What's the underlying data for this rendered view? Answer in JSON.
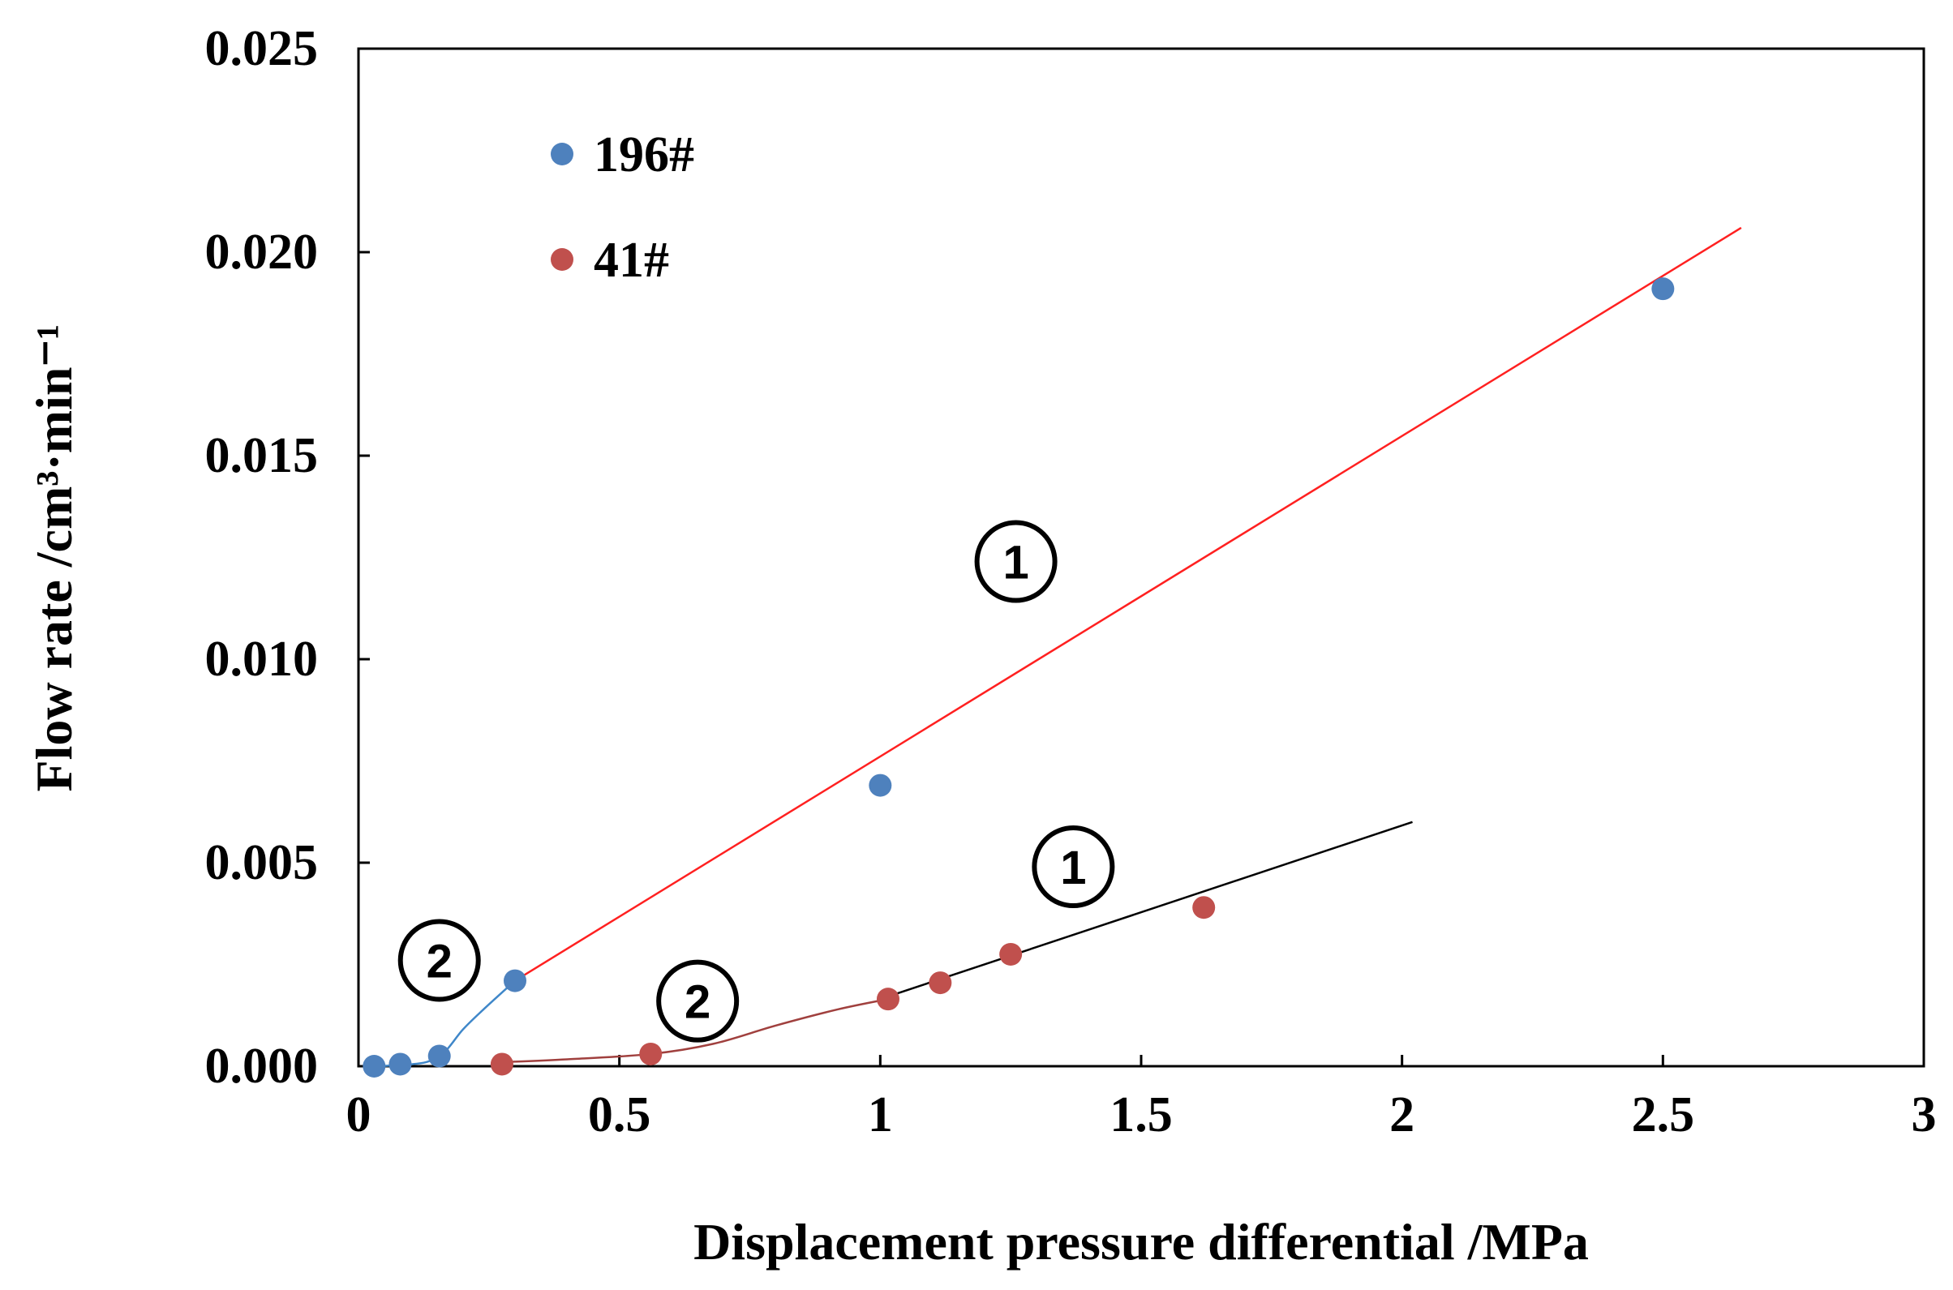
{
  "chart_data": {
    "type": "scatter",
    "title": "",
    "xlabel": "Displacement pressure differential /MPa",
    "ylabel": "Flow rate /cm³·min⁻¹",
    "xlim": [
      0,
      3
    ],
    "ylim": [
      0,
      0.025
    ],
    "x_ticks": [
      "0",
      "0.5",
      "1",
      "1.5",
      "2",
      "2.5",
      "3"
    ],
    "y_ticks": [
      "0.000",
      "0.005",
      "0.010",
      "0.015",
      "0.020",
      "0.025"
    ],
    "grid": false,
    "legend_position": "top-left",
    "colors": {
      "s196": "#4e81bd",
      "s41": "#c0504d",
      "fit_196": "#ff2020",
      "fit_41": "#000000",
      "curve_196": "#3f87c9",
      "curve_41": "#a0403e"
    },
    "series": [
      {
        "name": "196#",
        "color": "#4e81bd",
        "points": [
          [
            0.03,
            0.0
          ],
          [
            0.08,
            5e-05
          ],
          [
            0.155,
            0.00025
          ],
          [
            0.3,
            0.0021
          ],
          [
            1.0,
            0.0069
          ],
          [
            2.5,
            0.0191
          ]
        ]
      },
      {
        "name": "41#",
        "color": "#c0504d",
        "points": [
          [
            0.275,
            5e-05
          ],
          [
            0.56,
            0.0003
          ],
          [
            1.015,
            0.00165
          ],
          [
            1.115,
            0.00205
          ],
          [
            1.25,
            0.00275
          ],
          [
            1.62,
            0.0039
          ]
        ]
      }
    ],
    "fit_lines": [
      {
        "name": "196# linear region",
        "color": "#ff2020",
        "from": [
          0.3,
          0.0021
        ],
        "to": [
          2.65,
          0.0206
        ]
      },
      {
        "name": "41# linear region",
        "color": "#000000",
        "from": [
          1.0,
          0.00165
        ],
        "to": [
          2.02,
          0.006
        ]
      }
    ],
    "curves": [
      {
        "name": "196# nonlinear region",
        "color": "#3f87c9",
        "points": [
          [
            0.03,
            0.0
          ],
          [
            0.08,
            3e-05
          ],
          [
            0.13,
            0.0001
          ],
          [
            0.165,
            0.00035
          ],
          [
            0.2,
            0.0009
          ],
          [
            0.24,
            0.0014
          ],
          [
            0.3,
            0.0021
          ]
        ]
      },
      {
        "name": "41# nonlinear region",
        "color": "#a0403e",
        "points": [
          [
            0.275,
            0.0001
          ],
          [
            0.4,
            0.00017
          ],
          [
            0.56,
            0.0003
          ],
          [
            0.68,
            0.00055
          ],
          [
            0.8,
            0.001
          ],
          [
            0.92,
            0.0014
          ],
          [
            1.015,
            0.00165
          ]
        ]
      }
    ],
    "annotations": [
      {
        "label": "1",
        "x": 1.26,
        "y": 0.0124
      },
      {
        "label": "1",
        "x": 1.37,
        "y": 0.0049
      },
      {
        "label": "2",
        "x": 0.155,
        "y": 0.0026
      },
      {
        "label": "2",
        "x": 0.65,
        "y": 0.0016
      }
    ]
  }
}
